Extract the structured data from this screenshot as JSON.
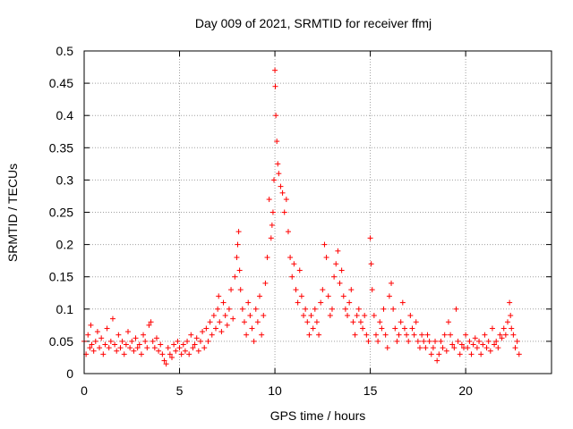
{
  "colors": {
    "series": "#ff0000",
    "grid": "#a0a0a0",
    "axis": "#000000"
  },
  "chart_data": {
    "type": "scatter",
    "title": "Day 009 of 2021, SRMTID for receiver ffmj",
    "xlabel": "GPS time / hours",
    "ylabel": "SRMTID / TECUs",
    "xlim": [
      0,
      24.5
    ],
    "ylim": [
      0,
      0.5
    ],
    "xticks": [
      0,
      5,
      10,
      15,
      20
    ],
    "xtick_labels": [
      "0",
      "5",
      "10",
      "15",
      "20"
    ],
    "yticks": [
      0,
      0.05,
      0.1,
      0.15,
      0.2,
      0.25,
      0.3,
      0.35,
      0.4,
      0.45,
      0.5
    ],
    "ytick_labels": [
      "0",
      "0.05",
      "0.1",
      "0.15",
      "0.2",
      "0.25",
      "0.3",
      "0.35",
      "0.4",
      "0.45",
      "0.5"
    ],
    "grid": true,
    "marker": "+",
    "series": [
      {
        "points": [
          [
            0.0,
            0.05
          ],
          [
            0.1,
            0.03
          ],
          [
            0.2,
            0.06
          ],
          [
            0.3,
            0.04
          ],
          [
            0.35,
            0.075
          ],
          [
            0.4,
            0.045
          ],
          [
            0.5,
            0.035
          ],
          [
            0.6,
            0.05
          ],
          [
            0.7,
            0.065
          ],
          [
            0.8,
            0.04
          ],
          [
            0.9,
            0.055
          ],
          [
            1.0,
            0.03
          ],
          [
            1.1,
            0.045
          ],
          [
            1.2,
            0.07
          ],
          [
            1.3,
            0.04
          ],
          [
            1.4,
            0.05
          ],
          [
            1.5,
            0.085
          ],
          [
            1.6,
            0.045
          ],
          [
            1.7,
            0.035
          ],
          [
            1.8,
            0.06
          ],
          [
            1.9,
            0.04
          ],
          [
            2.0,
            0.05
          ],
          [
            2.1,
            0.03
          ],
          [
            2.2,
            0.045
          ],
          [
            2.3,
            0.065
          ],
          [
            2.4,
            0.04
          ],
          [
            2.5,
            0.05
          ],
          [
            2.6,
            0.035
          ],
          [
            2.7,
            0.055
          ],
          [
            2.8,
            0.04
          ],
          [
            2.9,
            0.045
          ],
          [
            3.0,
            0.03
          ],
          [
            3.1,
            0.06
          ],
          [
            3.2,
            0.05
          ],
          [
            3.3,
            0.04
          ],
          [
            3.4,
            0.075
          ],
          [
            3.5,
            0.08
          ],
          [
            3.6,
            0.05
          ],
          [
            3.7,
            0.04
          ],
          [
            3.8,
            0.055
          ],
          [
            3.9,
            0.035
          ],
          [
            4.0,
            0.045
          ],
          [
            4.1,
            0.03
          ],
          [
            4.2,
            0.02
          ],
          [
            4.3,
            0.015
          ],
          [
            4.4,
            0.04
          ],
          [
            4.5,
            0.03
          ],
          [
            4.6,
            0.025
          ],
          [
            4.7,
            0.045
          ],
          [
            4.8,
            0.035
          ],
          [
            4.9,
            0.05
          ],
          [
            5.0,
            0.04
          ],
          [
            5.1,
            0.03
          ],
          [
            5.2,
            0.045
          ],
          [
            5.3,
            0.035
          ],
          [
            5.4,
            0.05
          ],
          [
            5.5,
            0.03
          ],
          [
            5.6,
            0.06
          ],
          [
            5.7,
            0.04
          ],
          [
            5.8,
            0.045
          ],
          [
            5.9,
            0.055
          ],
          [
            6.0,
            0.035
          ],
          [
            6.1,
            0.05
          ],
          [
            6.2,
            0.065
          ],
          [
            6.3,
            0.04
          ],
          [
            6.4,
            0.07
          ],
          [
            6.5,
            0.05
          ],
          [
            6.6,
            0.08
          ],
          [
            6.7,
            0.06
          ],
          [
            6.8,
            0.09
          ],
          [
            6.9,
            0.07
          ],
          [
            7.0,
            0.1
          ],
          [
            7.05,
            0.12
          ],
          [
            7.1,
            0.08
          ],
          [
            7.2,
            0.065
          ],
          [
            7.3,
            0.11
          ],
          [
            7.4,
            0.09
          ],
          [
            7.5,
            0.075
          ],
          [
            7.6,
            0.1
          ],
          [
            7.7,
            0.13
          ],
          [
            7.8,
            0.085
          ],
          [
            7.9,
            0.15
          ],
          [
            8.0,
            0.18
          ],
          [
            8.05,
            0.2
          ],
          [
            8.1,
            0.22
          ],
          [
            8.15,
            0.16
          ],
          [
            8.2,
            0.13
          ],
          [
            8.3,
            0.1
          ],
          [
            8.4,
            0.08
          ],
          [
            8.5,
            0.06
          ],
          [
            8.6,
            0.11
          ],
          [
            8.7,
            0.09
          ],
          [
            8.8,
            0.07
          ],
          [
            8.9,
            0.05
          ],
          [
            9.0,
            0.1
          ],
          [
            9.1,
            0.08
          ],
          [
            9.2,
            0.12
          ],
          [
            9.3,
            0.06
          ],
          [
            9.4,
            0.09
          ],
          [
            9.5,
            0.14
          ],
          [
            9.6,
            0.18
          ],
          [
            9.7,
            0.27
          ],
          [
            9.8,
            0.21
          ],
          [
            9.85,
            0.23
          ],
          [
            9.9,
            0.25
          ],
          [
            9.95,
            0.3
          ],
          [
            10.0,
            0.47
          ],
          [
            10.02,
            0.445
          ],
          [
            10.05,
            0.4
          ],
          [
            10.1,
            0.36
          ],
          [
            10.15,
            0.325
          ],
          [
            10.2,
            0.31
          ],
          [
            10.3,
            0.29
          ],
          [
            10.4,
            0.28
          ],
          [
            10.5,
            0.25
          ],
          [
            10.6,
            0.27
          ],
          [
            10.7,
            0.22
          ],
          [
            10.8,
            0.18
          ],
          [
            10.9,
            0.15
          ],
          [
            11.0,
            0.17
          ],
          [
            11.1,
            0.13
          ],
          [
            11.2,
            0.11
          ],
          [
            11.3,
            0.16
          ],
          [
            11.4,
            0.12
          ],
          [
            11.5,
            0.09
          ],
          [
            11.6,
            0.1
          ],
          [
            11.7,
            0.08
          ],
          [
            11.8,
            0.06
          ],
          [
            11.9,
            0.09
          ],
          [
            12.0,
            0.07
          ],
          [
            12.1,
            0.1
          ],
          [
            12.2,
            0.08
          ],
          [
            12.3,
            0.06
          ],
          [
            12.4,
            0.11
          ],
          [
            12.5,
            0.13
          ],
          [
            12.6,
            0.2
          ],
          [
            12.7,
            0.18
          ],
          [
            12.8,
            0.12
          ],
          [
            12.9,
            0.09
          ],
          [
            13.0,
            0.1
          ],
          [
            13.1,
            0.15
          ],
          [
            13.2,
            0.17
          ],
          [
            13.3,
            0.19
          ],
          [
            13.4,
            0.14
          ],
          [
            13.5,
            0.16
          ],
          [
            13.6,
            0.12
          ],
          [
            13.7,
            0.1
          ],
          [
            13.8,
            0.09
          ],
          [
            13.9,
            0.11
          ],
          [
            14.0,
            0.13
          ],
          [
            14.1,
            0.08
          ],
          [
            14.2,
            0.06
          ],
          [
            14.3,
            0.09
          ],
          [
            14.4,
            0.1
          ],
          [
            14.5,
            0.08
          ],
          [
            14.6,
            0.07
          ],
          [
            14.7,
            0.09
          ],
          [
            14.8,
            0.06
          ],
          [
            14.9,
            0.05
          ],
          [
            15.0,
            0.21
          ],
          [
            15.05,
            0.17
          ],
          [
            15.1,
            0.13
          ],
          [
            15.2,
            0.09
          ],
          [
            15.3,
            0.06
          ],
          [
            15.4,
            0.05
          ],
          [
            15.5,
            0.08
          ],
          [
            15.6,
            0.07
          ],
          [
            15.7,
            0.1
          ],
          [
            15.8,
            0.06
          ],
          [
            15.9,
            0.04
          ],
          [
            16.0,
            0.12
          ],
          [
            16.1,
            0.14
          ],
          [
            16.2,
            0.1
          ],
          [
            16.3,
            0.07
          ],
          [
            16.4,
            0.05
          ],
          [
            16.5,
            0.06
          ],
          [
            16.6,
            0.08
          ],
          [
            16.7,
            0.11
          ],
          [
            16.8,
            0.07
          ],
          [
            16.9,
            0.06
          ],
          [
            17.0,
            0.05
          ],
          [
            17.1,
            0.09
          ],
          [
            17.2,
            0.07
          ],
          [
            17.3,
            0.06
          ],
          [
            17.4,
            0.08
          ],
          [
            17.5,
            0.05
          ],
          [
            17.6,
            0.04
          ],
          [
            17.7,
            0.06
          ],
          [
            17.8,
            0.05
          ],
          [
            17.9,
            0.04
          ],
          [
            18.0,
            0.06
          ],
          [
            18.1,
            0.05
          ],
          [
            18.2,
            0.03
          ],
          [
            18.3,
            0.04
          ],
          [
            18.4,
            0.05
          ],
          [
            18.5,
            0.02
          ],
          [
            18.6,
            0.03
          ],
          [
            18.7,
            0.05
          ],
          [
            18.8,
            0.04
          ],
          [
            18.9,
            0.06
          ],
          [
            19.0,
            0.035
          ],
          [
            19.1,
            0.08
          ],
          [
            19.2,
            0.06
          ],
          [
            19.3,
            0.045
          ],
          [
            19.4,
            0.04
          ],
          [
            19.5,
            0.1
          ],
          [
            19.6,
            0.05
          ],
          [
            19.7,
            0.03
          ],
          [
            19.8,
            0.045
          ],
          [
            19.9,
            0.04
          ],
          [
            20.0,
            0.06
          ],
          [
            20.1,
            0.04
          ],
          [
            20.2,
            0.05
          ],
          [
            20.3,
            0.03
          ],
          [
            20.4,
            0.045
          ],
          [
            20.5,
            0.055
          ],
          [
            20.6,
            0.04
          ],
          [
            20.7,
            0.05
          ],
          [
            20.8,
            0.03
          ],
          [
            20.9,
            0.045
          ],
          [
            21.0,
            0.06
          ],
          [
            21.1,
            0.04
          ],
          [
            21.2,
            0.05
          ],
          [
            21.3,
            0.035
          ],
          [
            21.4,
            0.07
          ],
          [
            21.5,
            0.045
          ],
          [
            21.6,
            0.05
          ],
          [
            21.7,
            0.04
          ],
          [
            21.8,
            0.06
          ],
          [
            21.9,
            0.055
          ],
          [
            22.0,
            0.07
          ],
          [
            22.1,
            0.06
          ],
          [
            22.2,
            0.08
          ],
          [
            22.3,
            0.11
          ],
          [
            22.35,
            0.09
          ],
          [
            22.4,
            0.07
          ],
          [
            22.5,
            0.06
          ],
          [
            22.6,
            0.04
          ],
          [
            22.7,
            0.05
          ],
          [
            22.8,
            0.03
          ]
        ]
      }
    ]
  }
}
